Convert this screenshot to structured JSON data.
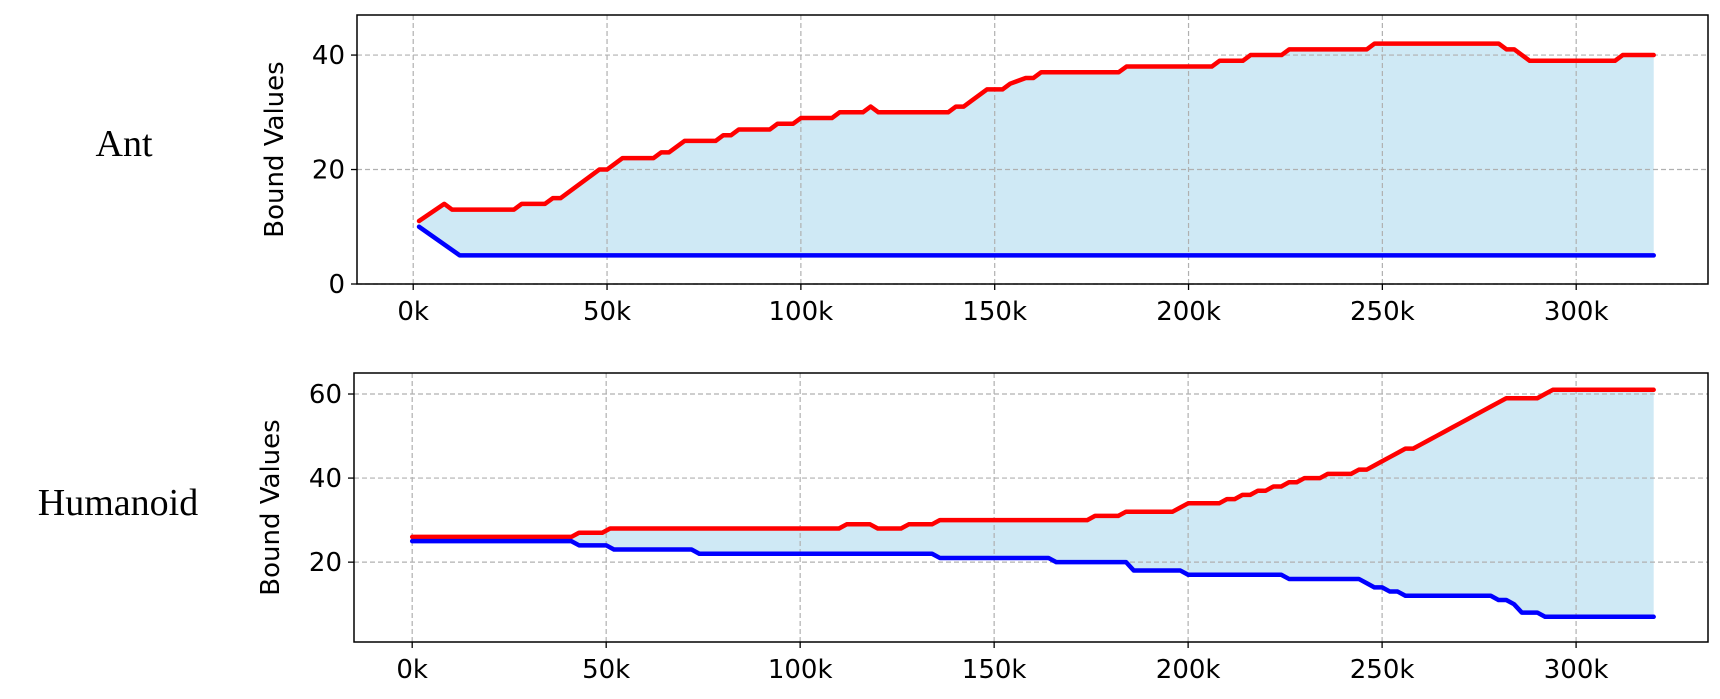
{
  "rows": [
    {
      "label": "Ant"
    },
    {
      "label": "Humanoid"
    }
  ],
  "chart_data": [
    {
      "type": "line",
      "title": "",
      "xlabel": "",
      "ylabel": "Bound Values",
      "xlim": [
        -14500,
        334000
      ],
      "ylim": [
        0,
        47
      ],
      "xticks": [
        0,
        50000,
        100000,
        150000,
        200000,
        250000,
        300000
      ],
      "xtick_labels": [
        "0k",
        "50k",
        "100k",
        "150k",
        "200k",
        "250k",
        "300k"
      ],
      "yticks": [
        0,
        20,
        40
      ],
      "ytick_labels": [
        "0",
        "20",
        "40"
      ],
      "grid": true,
      "fill_between": {
        "color": "#cfe9f5"
      },
      "series": [
        {
          "role": "upper",
          "color": "#ff0000",
          "x": [
            1500,
            8000,
            10000,
            26000,
            28000,
            34000,
            36000,
            38000,
            48000,
            50000,
            54000,
            62000,
            64000,
            66000,
            70000,
            78000,
            80000,
            82000,
            84000,
            92000,
            94000,
            98000,
            100000,
            108000,
            110000,
            116000,
            118000,
            120000,
            138000,
            140000,
            142000,
            144000,
            148000,
            152000,
            154000,
            158000,
            160000,
            162000,
            164000,
            182000,
            184000,
            206000,
            208000,
            214000,
            216000,
            224000,
            226000,
            246000,
            248000,
            280000,
            282000,
            284000,
            286000,
            288000,
            310000,
            312000,
            320000
          ],
          "values": [
            11,
            14,
            13,
            13,
            14,
            14,
            15,
            15,
            20,
            20,
            22,
            22,
            23,
            23,
            25,
            25,
            26,
            26,
            27,
            27,
            28,
            28,
            29,
            29,
            30,
            30,
            31,
            30,
            30,
            31,
            31,
            32,
            34,
            34,
            35,
            36,
            36,
            37,
            37,
            37,
            38,
            38,
            39,
            39,
            40,
            40,
            41,
            41,
            42,
            42,
            41,
            41,
            40,
            39,
            39,
            40,
            40
          ]
        },
        {
          "role": "lower",
          "color": "#0000ff",
          "x": [
            1500,
            12000,
            320000
          ],
          "values": [
            10,
            5,
            5
          ]
        }
      ]
    },
    {
      "type": "line",
      "title": "",
      "xlabel": "",
      "ylabel": "Bound Values",
      "xlim": [
        -15000,
        334000
      ],
      "ylim": [
        1,
        65
      ],
      "xticks": [
        0,
        50000,
        100000,
        150000,
        200000,
        250000,
        300000
      ],
      "xtick_labels": [
        "0k",
        "50k",
        "100k",
        "150k",
        "200k",
        "250k",
        "300k"
      ],
      "yticks": [
        20,
        40,
        60
      ],
      "ytick_labels": [
        "20",
        "40",
        "60"
      ],
      "grid": true,
      "fill_between": {
        "color": "#cfe9f5"
      },
      "series": [
        {
          "role": "upper",
          "color": "#ff0000",
          "x": [
            0,
            41000,
            43000,
            49000,
            51000,
            110000,
            112000,
            118000,
            120000,
            126000,
            128000,
            134000,
            136000,
            166000,
            168000,
            174000,
            176000,
            182000,
            184000,
            196000,
            198000,
            200000,
            204000,
            208000,
            210000,
            212000,
            214000,
            216000,
            218000,
            220000,
            222000,
            224000,
            226000,
            228000,
            230000,
            232000,
            234000,
            236000,
            238000,
            242000,
            244000,
            246000,
            248000,
            250000,
            252000,
            254000,
            256000,
            258000,
            260000,
            262000,
            264000,
            266000,
            268000,
            270000,
            272000,
            274000,
            276000,
            278000,
            280000,
            282000,
            290000,
            292000,
            294000,
            320000
          ],
          "values": [
            26,
            26,
            27,
            27,
            28,
            28,
            29,
            29,
            28,
            28,
            29,
            29,
            30,
            30,
            30,
            30,
            31,
            31,
            32,
            32,
            33,
            34,
            34,
            34,
            35,
            35,
            36,
            36,
            37,
            37,
            38,
            38,
            39,
            39,
            40,
            40,
            40,
            41,
            41,
            41,
            42,
            42,
            43,
            44,
            45,
            46,
            47,
            47,
            48,
            49,
            50,
            51,
            52,
            53,
            54,
            55,
            56,
            57,
            58,
            59,
            59,
            60,
            61,
            61
          ]
        },
        {
          "role": "lower",
          "color": "#0000ff",
          "x": [
            0,
            41000,
            43000,
            50000,
            52000,
            72000,
            74000,
            134000,
            136000,
            164000,
            166000,
            184000,
            186000,
            198000,
            200000,
            224000,
            226000,
            244000,
            246000,
            248000,
            250000,
            252000,
            254000,
            256000,
            258000,
            278000,
            280000,
            282000,
            284000,
            286000,
            290000,
            292000,
            320000
          ],
          "values": [
            25,
            25,
            24,
            24,
            23,
            23,
            22,
            22,
            21,
            21,
            20,
            20,
            18,
            18,
            17,
            17,
            16,
            16,
            15,
            14,
            14,
            13,
            13,
            12,
            12,
            12,
            11,
            11,
            10,
            8,
            8,
            7,
            7
          ]
        }
      ]
    }
  ]
}
